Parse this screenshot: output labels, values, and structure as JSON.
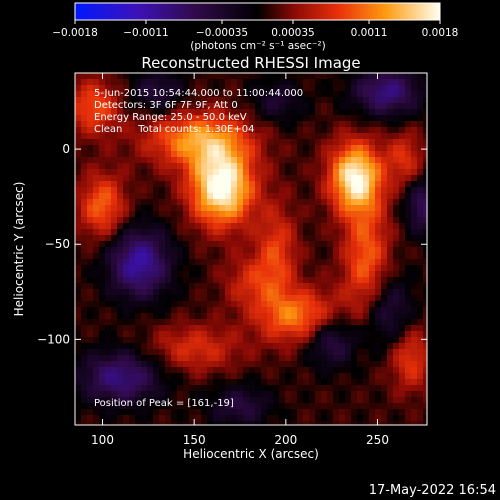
{
  "chart_data": {
    "type": "heatmap",
    "title": "Reconstructed RHESSI Image",
    "xlabel": "Heliocentric X (arcsec)",
    "ylabel": "Heliocentric Y (arcsec)",
    "xlim": [
      85,
      277
    ],
    "ylim": [
      -145,
      40
    ],
    "x_ticks": [
      100,
      150,
      200,
      250
    ],
    "y_ticks": [
      0,
      -50,
      -100
    ],
    "x_tick_labels": [
      "100",
      "150",
      "200",
      "250"
    ],
    "y_tick_labels": [
      "0",
      "−50",
      "−100"
    ],
    "colorbar": {
      "min": -0.0018,
      "max": 0.0018,
      "ticks": [
        -0.0018,
        -0.0011,
        -0.00035,
        0.00035,
        0.0011,
        0.0018
      ],
      "tick_labels": [
        "−0.0018",
        "−0.0011",
        "−0.00035",
        "0.00035",
        "0.0011",
        "0.0018"
      ],
      "unit_label": "(photons cm⁻² s⁻¹ asec⁻²)"
    },
    "peak": [
      161,
      -19
    ],
    "sources": [
      {
        "x": 165,
        "y": -20,
        "value": 0.0018,
        "sx": 12,
        "sy": 14
      },
      {
        "x": 238,
        "y": -15,
        "value": 0.00165,
        "sx": 10,
        "sy": 13
      },
      {
        "x": 244,
        "y": -60,
        "value": 0.0009,
        "sx": 9,
        "sy": 22
      },
      {
        "x": 152,
        "y": 5,
        "value": 0.0011,
        "sx": 20,
        "sy": 10
      },
      {
        "x": 100,
        "y": -30,
        "value": 0.0009,
        "sx": 9,
        "sy": 12
      },
      {
        "x": 95,
        "y": 22,
        "value": 0.0008,
        "sx": 10,
        "sy": 10
      },
      {
        "x": 208,
        "y": -88,
        "value": 0.001,
        "sx": 16,
        "sy": 10
      },
      {
        "x": 195,
        "y": -55,
        "value": 0.0007,
        "sx": 8,
        "sy": 18
      },
      {
        "x": 150,
        "y": -105,
        "value": 0.0006,
        "sx": 18,
        "sy": 9
      },
      {
        "x": 268,
        "y": -110,
        "value": 0.0007,
        "sx": 8,
        "sy": 12
      },
      {
        "x": 265,
        "y": -5,
        "value": 0.0006,
        "sx": 7,
        "sy": 10
      },
      {
        "x": 180,
        "y": -70,
        "value": 0.0005,
        "sx": 10,
        "sy": 10
      },
      {
        "x": 120,
        "y": -60,
        "value": -0.0012,
        "sx": 12,
        "sy": 13
      },
      {
        "x": 225,
        "y": -100,
        "value": -0.0008,
        "sx": 10,
        "sy": 10
      },
      {
        "x": 255,
        "y": -85,
        "value": -0.0007,
        "sx": 10,
        "sy": 14
      },
      {
        "x": 255,
        "y": 30,
        "value": -0.001,
        "sx": 13,
        "sy": 9
      },
      {
        "x": 110,
        "y": -120,
        "value": -0.001,
        "sx": 16,
        "sy": 10
      },
      {
        "x": 275,
        "y": -30,
        "value": -0.0008,
        "sx": 7,
        "sy": 10
      },
      {
        "x": 195,
        "y": 25,
        "value": -0.0005,
        "sx": 10,
        "sy": 8
      },
      {
        "x": 175,
        "y": -135,
        "value": -0.0006,
        "sx": 12,
        "sy": 8
      },
      {
        "x": 130,
        "y": 30,
        "value": -0.0006,
        "sx": 10,
        "sy": 8
      }
    ]
  },
  "info": {
    "line1": "5-Jun-2015 10:54:44.000 to 11:00:44.000",
    "line2": "Detectors: 3F 6F 7F 9F, Att 0",
    "line3": "Energy Range: 25.0 - 50.0 keV",
    "line4": "Clean     Total counts: 1.30E+04",
    "peak_label": "Position of Peak = [161,-19]"
  },
  "footer": {
    "date": "17-May-2022 16:54"
  }
}
